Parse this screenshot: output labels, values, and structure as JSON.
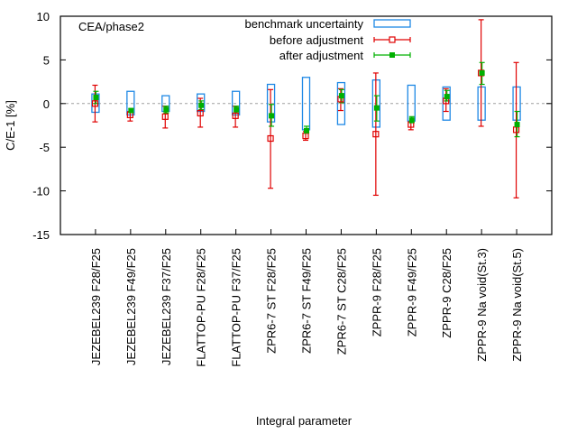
{
  "chart_data": {
    "type": "errorbar",
    "title": "",
    "annotation": "CEA/phase2",
    "xlabel": "Integral parameter",
    "ylabel": "C/E-1 [%]",
    "ylim": [
      -15,
      10
    ],
    "yticks": [
      10,
      5,
      0,
      -5,
      -10,
      -15
    ],
    "xlim": [
      0,
      14
    ],
    "zero_line": {
      "value": 0,
      "style": "dashed",
      "color": "#a0a0a0"
    },
    "legend": {
      "placement": "top-right",
      "entries": [
        {
          "label": "benchmark uncertainty",
          "style": "box",
          "color": "#1e88e5"
        },
        {
          "label": "before adjustment",
          "style": "errorbar-open-square",
          "color": "#e00000"
        },
        {
          "label": "after adjustment",
          "style": "errorbar-filled-square",
          "color": "#00b000"
        }
      ]
    },
    "categories": [
      "JEZEBEL239 F28/F25",
      "JEZEBEL239 F49/F25",
      "JEZEBEL239 F37/F25",
      "FLATTOP-PU F28/F25",
      "FLATTOP-PU F37/F25",
      "ZPR6-7 ST F28/F25",
      "ZPR6-7 ST F49/F25",
      "ZPR6-7 ST C28/F25",
      "ZPPR-9 F28/F25",
      "ZPPR-9 F49/F25",
      "ZPPR-9 C28/F25",
      "ZPPR-9 Na void(St.3)",
      "ZPPR-9 Na void(St.5)"
    ],
    "series": [
      {
        "name": "benchmark uncertainty",
        "type": "box",
        "color": "#1e88e5",
        "low": [
          -1.0,
          -1.3,
          -0.9,
          -0.9,
          -1.3,
          -2.1,
          -3.0,
          -2.4,
          -2.7,
          -2.0,
          -1.9,
          -1.9,
          -1.9
        ],
        "high": [
          1.1,
          1.4,
          0.9,
          1.1,
          1.4,
          2.2,
          3.0,
          2.4,
          2.7,
          2.1,
          1.9,
          1.9,
          1.9
        ]
      },
      {
        "name": "before adjustment",
        "type": "errorbar",
        "marker": "open-square",
        "color": "#e00000",
        "values": [
          0.0,
          -1.3,
          -1.5,
          -1.1,
          -1.4,
          -4.0,
          -3.7,
          0.5,
          -3.5,
          -2.4,
          0.3,
          3.5,
          -3.0
        ],
        "low": [
          -2.1,
          -2.0,
          -2.8,
          -2.7,
          -2.7,
          -9.7,
          -4.2,
          -0.8,
          -10.5,
          -3.0,
          -0.9,
          -2.6,
          -10.8
        ],
        "high": [
          2.1,
          -0.9,
          -0.3,
          0.6,
          -0.3,
          1.6,
          -3.2,
          1.7,
          3.5,
          -2.1,
          1.7,
          9.6,
          4.7
        ]
      },
      {
        "name": "after adjustment",
        "type": "errorbar",
        "marker": "filled-square",
        "color": "#00b000",
        "values": [
          0.7,
          -0.8,
          -0.7,
          -0.2,
          -0.7,
          -1.4,
          -3.1,
          0.9,
          -0.5,
          -1.9,
          0.8,
          3.5,
          -2.4
        ],
        "low": [
          0.0,
          -1.0,
          -1.1,
          -0.7,
          -1.1,
          -2.6,
          -3.4,
          0.1,
          -2.0,
          -2.2,
          0.3,
          2.2,
          -3.8
        ],
        "high": [
          1.4,
          -0.6,
          -0.3,
          0.3,
          -0.3,
          -0.1,
          -2.6,
          1.6,
          0.9,
          -1.5,
          1.5,
          4.7,
          -0.9
        ]
      }
    ],
    "grid": false
  }
}
